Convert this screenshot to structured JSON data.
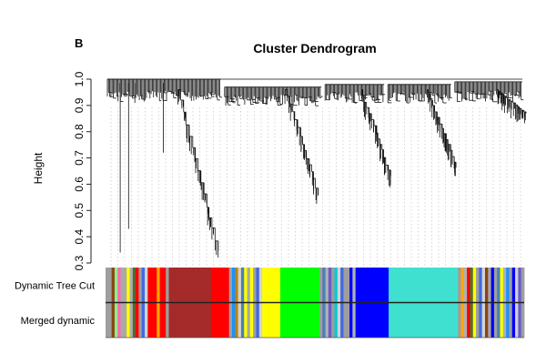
{
  "panel_letter": "B",
  "chart_data": {
    "type": "dendrogram",
    "title": "Cluster Dendrogram",
    "xlabel": "",
    "ylabel": "Height",
    "ylim": [
      0.3,
      1.0
    ],
    "yticks": [
      "0.3",
      "0.4",
      "0.5",
      "0.6",
      "0.7",
      "0.8",
      "0.9",
      "1.0"
    ],
    "grid": "vertical dotted guide lines to module color bars",
    "clusters": [
      {
        "start": 0.0,
        "end": 0.28,
        "top": 1.0,
        "min": 0.34
      },
      {
        "start": 0.28,
        "end": 0.52,
        "top": 0.97,
        "min": 0.56
      },
      {
        "start": 0.52,
        "end": 0.67,
        "top": 0.98,
        "min": 0.63
      },
      {
        "start": 0.67,
        "end": 0.83,
        "top": 0.98,
        "min": 0.66
      },
      {
        "start": 0.83,
        "end": 1.0,
        "top": 0.99,
        "min": 0.87
      }
    ],
    "color_rows": [
      {
        "label": "Dynamic Tree Cut",
        "blocks": [
          {
            "color": "#9e9e9e",
            "width": 2
          },
          {
            "color": "#8b4513",
            "width": 1
          },
          {
            "color": "#90ee90",
            "width": 1
          },
          {
            "color": "#ff69b4",
            "width": 1
          },
          {
            "color": "#a9a9a9",
            "width": 2
          },
          {
            "color": "#ffff00",
            "width": 1
          },
          {
            "color": "#b0b0b0",
            "width": 1
          },
          {
            "color": "#556b2f",
            "width": 1
          },
          {
            "color": "#ff0000",
            "width": 1
          },
          {
            "color": "#9e9e9e",
            "width": 1
          },
          {
            "color": "#4169e1",
            "width": 1
          },
          {
            "color": "#d3d3d3",
            "width": 1
          },
          {
            "color": "#ff0000",
            "width": 3
          },
          {
            "color": "#ffa500",
            "width": 1
          },
          {
            "color": "#ff0000",
            "width": 2
          },
          {
            "color": "#9e9e9e",
            "width": 1
          },
          {
            "color": "#a52a2a",
            "width": 14
          },
          {
            "color": "#ff0000",
            "width": 6
          },
          {
            "color": "#9e9e9e",
            "width": 1
          },
          {
            "color": "#1e90ff",
            "width": 1
          },
          {
            "color": "#b8860b",
            "width": 1
          },
          {
            "color": "#d3d3d3",
            "width": 1
          },
          {
            "color": "#4682b4",
            "width": 1
          },
          {
            "color": "#ffff00",
            "width": 1
          },
          {
            "color": "#a9a9a9",
            "width": 1
          },
          {
            "color": "#ffff00",
            "width": 1
          },
          {
            "color": "#9e9e9e",
            "width": 1
          },
          {
            "color": "#4169e1",
            "width": 1
          },
          {
            "color": "#d3d3d3",
            "width": 1
          },
          {
            "color": "#ffff00",
            "width": 6
          },
          {
            "color": "#00ff00",
            "width": 13
          },
          {
            "color": "#9e9e9e",
            "width": 1
          },
          {
            "color": "#4682b4",
            "width": 1
          },
          {
            "color": "#b0b0b0",
            "width": 1
          },
          {
            "color": "#6a5acd",
            "width": 1
          },
          {
            "color": "#9e9e9e",
            "width": 1
          },
          {
            "color": "#00ced1",
            "width": 1
          },
          {
            "color": "#d3d3d3",
            "width": 1
          },
          {
            "color": "#4169e1",
            "width": 1
          },
          {
            "color": "#9e9e9e",
            "width": 2
          },
          {
            "color": "#0000ff",
            "width": 1
          },
          {
            "color": "#b0b0b0",
            "width": 1
          },
          {
            "color": "#0000ff",
            "width": 11
          },
          {
            "color": "#40e0d0",
            "width": 23
          },
          {
            "color": "#9e9e9e",
            "width": 1
          },
          {
            "color": "#ffa500",
            "width": 1
          },
          {
            "color": "#b0b0b0",
            "width": 1
          },
          {
            "color": "#ff0000",
            "width": 1
          },
          {
            "color": "#556b2f",
            "width": 1
          },
          {
            "color": "#ffff00",
            "width": 1
          },
          {
            "color": "#9e9e9e",
            "width": 1
          },
          {
            "color": "#4169e1",
            "width": 1
          },
          {
            "color": "#d3d3d3",
            "width": 1
          },
          {
            "color": "#8b4513",
            "width": 1
          },
          {
            "color": "#a9a9a9",
            "width": 1
          },
          {
            "color": "#0000ff",
            "width": 1
          },
          {
            "color": "#9e9e9e",
            "width": 1
          },
          {
            "color": "#4682b4",
            "width": 1
          },
          {
            "color": "#ffff00",
            "width": 1
          },
          {
            "color": "#b0b0b0",
            "width": 1
          },
          {
            "color": "#1e90ff",
            "width": 1
          },
          {
            "color": "#9e9e9e",
            "width": 1
          },
          {
            "color": "#0000ff",
            "width": 1
          },
          {
            "color": "#d3d3d3",
            "width": 1
          },
          {
            "color": "#6a5acd",
            "width": 1
          },
          {
            "color": "#9e9e9e",
            "width": 1
          }
        ]
      },
      {
        "label": "Merged dynamic",
        "blocks": [
          {
            "color": "#9e9e9e",
            "width": 2
          },
          {
            "color": "#8b4513",
            "width": 1
          },
          {
            "color": "#90ee90",
            "width": 1
          },
          {
            "color": "#ff69b4",
            "width": 1
          },
          {
            "color": "#a9a9a9",
            "width": 2
          },
          {
            "color": "#ffff00",
            "width": 1
          },
          {
            "color": "#b0b0b0",
            "width": 1
          },
          {
            "color": "#556b2f",
            "width": 1
          },
          {
            "color": "#ff0000",
            "width": 1
          },
          {
            "color": "#9e9e9e",
            "width": 1
          },
          {
            "color": "#4169e1",
            "width": 1
          },
          {
            "color": "#d3d3d3",
            "width": 1
          },
          {
            "color": "#ff0000",
            "width": 3
          },
          {
            "color": "#ffa500",
            "width": 1
          },
          {
            "color": "#ff0000",
            "width": 2
          },
          {
            "color": "#9e9e9e",
            "width": 1
          },
          {
            "color": "#a52a2a",
            "width": 14
          },
          {
            "color": "#ff0000",
            "width": 6
          },
          {
            "color": "#9e9e9e",
            "width": 1
          },
          {
            "color": "#1e90ff",
            "width": 1
          },
          {
            "color": "#b8860b",
            "width": 1
          },
          {
            "color": "#d3d3d3",
            "width": 1
          },
          {
            "color": "#4682b4",
            "width": 1
          },
          {
            "color": "#ffff00",
            "width": 1
          },
          {
            "color": "#a9a9a9",
            "width": 1
          },
          {
            "color": "#ffff00",
            "width": 1
          },
          {
            "color": "#9e9e9e",
            "width": 1
          },
          {
            "color": "#4169e1",
            "width": 1
          },
          {
            "color": "#d3d3d3",
            "width": 1
          },
          {
            "color": "#ffff00",
            "width": 6
          },
          {
            "color": "#00ff00",
            "width": 13
          },
          {
            "color": "#9e9e9e",
            "width": 1
          },
          {
            "color": "#4682b4",
            "width": 1
          },
          {
            "color": "#b0b0b0",
            "width": 1
          },
          {
            "color": "#6a5acd",
            "width": 1
          },
          {
            "color": "#9e9e9e",
            "width": 1
          },
          {
            "color": "#00ced1",
            "width": 1
          },
          {
            "color": "#d3d3d3",
            "width": 1
          },
          {
            "color": "#4169e1",
            "width": 1
          },
          {
            "color": "#9e9e9e",
            "width": 2
          },
          {
            "color": "#0000ff",
            "width": 1
          },
          {
            "color": "#b0b0b0",
            "width": 1
          },
          {
            "color": "#0000ff",
            "width": 11
          },
          {
            "color": "#40e0d0",
            "width": 23
          },
          {
            "color": "#9e9e9e",
            "width": 1
          },
          {
            "color": "#ffa500",
            "width": 1
          },
          {
            "color": "#b0b0b0",
            "width": 1
          },
          {
            "color": "#ff0000",
            "width": 1
          },
          {
            "color": "#556b2f",
            "width": 1
          },
          {
            "color": "#ffff00",
            "width": 1
          },
          {
            "color": "#9e9e9e",
            "width": 1
          },
          {
            "color": "#4169e1",
            "width": 1
          },
          {
            "color": "#d3d3d3",
            "width": 1
          },
          {
            "color": "#8b4513",
            "width": 1
          },
          {
            "color": "#a9a9a9",
            "width": 1
          },
          {
            "color": "#0000ff",
            "width": 1
          },
          {
            "color": "#9e9e9e",
            "width": 1
          },
          {
            "color": "#4682b4",
            "width": 1
          },
          {
            "color": "#ffff00",
            "width": 1
          },
          {
            "color": "#b0b0b0",
            "width": 1
          },
          {
            "color": "#1e90ff",
            "width": 1
          },
          {
            "color": "#9e9e9e",
            "width": 1
          },
          {
            "color": "#0000ff",
            "width": 1
          },
          {
            "color": "#d3d3d3",
            "width": 1
          },
          {
            "color": "#6a5acd",
            "width": 1
          },
          {
            "color": "#9e9e9e",
            "width": 1
          }
        ]
      }
    ]
  }
}
